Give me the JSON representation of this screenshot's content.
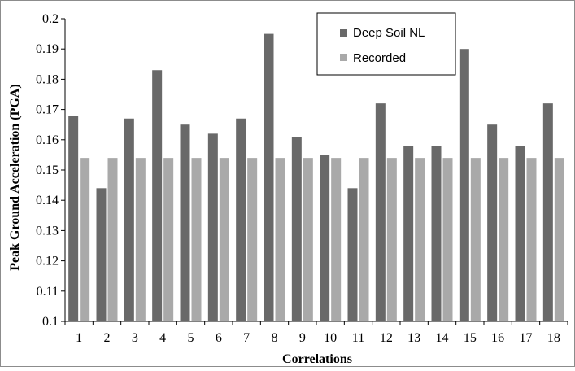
{
  "chart_data": {
    "type": "bar",
    "title": "",
    "xlabel": "Correlations",
    "ylabel": "Peak Ground Acceleration (PGA)",
    "ylim": [
      0.1,
      0.2
    ],
    "y_ticks": [
      "0.1",
      "0.11",
      "0.12",
      "0.13",
      "0.14",
      "0.15",
      "0.16",
      "0.17",
      "0.18",
      "0.19",
      "0.2"
    ],
    "grid": false,
    "legend_position": "top-right",
    "categories": [
      "1",
      "2",
      "3",
      "4",
      "5",
      "6",
      "7",
      "8",
      "9",
      "10",
      "11",
      "12",
      "13",
      "14",
      "15",
      "16",
      "17",
      "18"
    ],
    "series": [
      {
        "name": "Deep Soil NL",
        "color": "#696969",
        "values": [
          0.168,
          0.144,
          0.167,
          0.183,
          0.165,
          0.162,
          0.167,
          0.195,
          0.161,
          0.155,
          0.144,
          0.172,
          0.158,
          0.158,
          0.19,
          0.165,
          0.158,
          0.172
        ]
      },
      {
        "name": "Recorded",
        "color": "#a9a9a9",
        "values": [
          0.154,
          0.154,
          0.154,
          0.154,
          0.154,
          0.154,
          0.154,
          0.154,
          0.154,
          0.154,
          0.154,
          0.154,
          0.154,
          0.154,
          0.154,
          0.154,
          0.154,
          0.154
        ]
      }
    ]
  }
}
